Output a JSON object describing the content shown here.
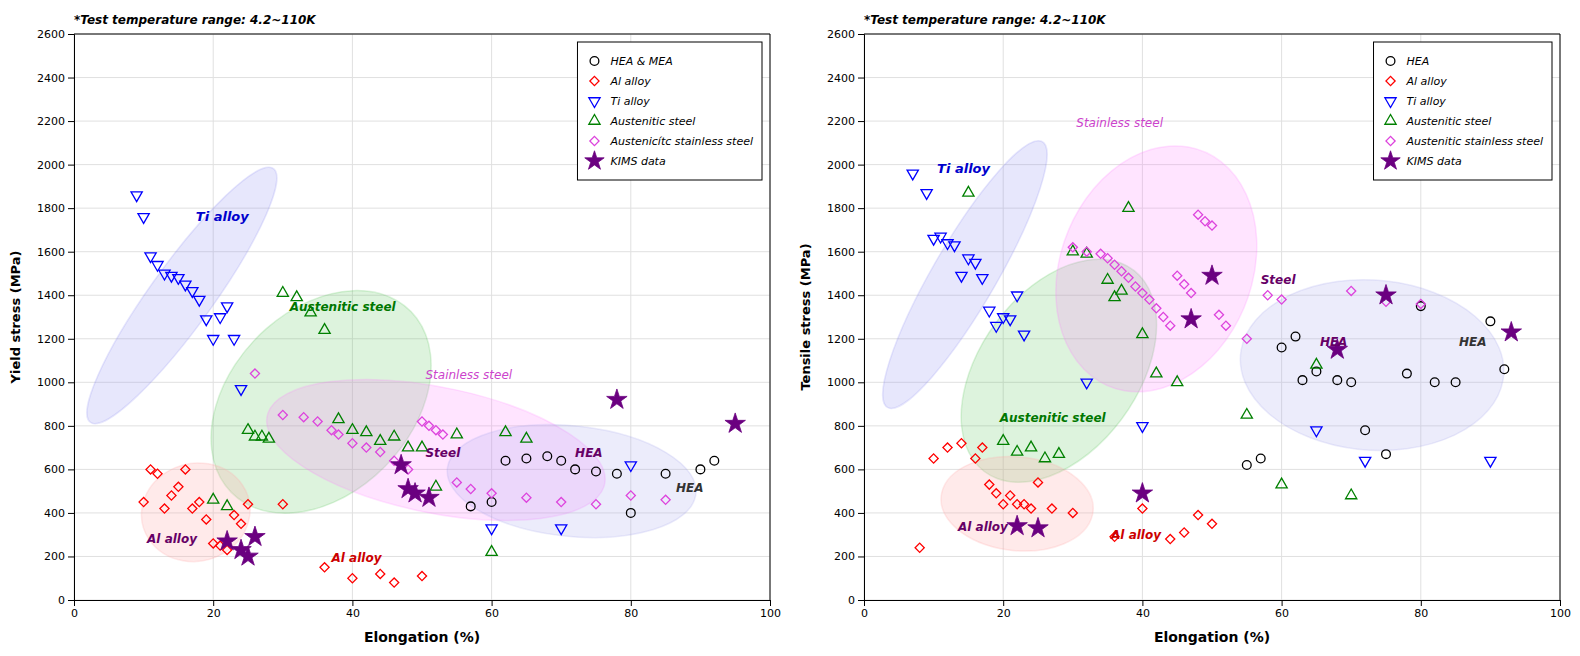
{
  "chart_data": [
    {
      "type": "scatter",
      "title": "*Test temperature range: 4.2~110K",
      "x_label": "Elongation (%)",
      "y_label": "Yield stress (MPa)",
      "xlim": [
        0,
        100
      ],
      "ylim": [
        0,
        2600
      ],
      "xticks": [
        0,
        20,
        40,
        60,
        80,
        100
      ],
      "yticks": [
        0,
        200,
        400,
        600,
        800,
        1000,
        1200,
        1400,
        1600,
        1800,
        2000,
        2200,
        2400,
        2600
      ],
      "grid": true,
      "legend": "upper right",
      "series": [
        {
          "name": "HEA & MEA",
          "color": "black",
          "marker": "circle",
          "x": [
            57,
            60,
            62,
            65,
            68,
            70,
            72,
            75,
            78,
            80,
            85,
            90,
            92
          ],
          "values": [
            430,
            450,
            640,
            650,
            660,
            640,
            600,
            590,
            580,
            400,
            580,
            600,
            640
          ]
        },
        {
          "name": "Al alloy",
          "color": "red",
          "marker": "diamond",
          "x": [
            10,
            11,
            12,
            13,
            14,
            15,
            16,
            17,
            18,
            19,
            20,
            21,
            22,
            23,
            24,
            25,
            30,
            36,
            40,
            44,
            46,
            50
          ],
          "values": [
            450,
            600,
            580,
            420,
            480,
            520,
            600,
            420,
            450,
            370,
            260,
            250,
            230,
            390,
            350,
            440,
            440,
            150,
            100,
            120,
            80,
            110
          ]
        },
        {
          "name": "Ti alloy",
          "color": "blue",
          "marker": "triangle-down",
          "x": [
            9,
            10,
            11,
            12,
            13,
            14,
            15,
            16,
            17,
            18,
            19,
            20,
            21,
            22,
            23,
            24,
            60,
            70,
            80
          ],
          "values": [
            1860,
            1760,
            1580,
            1540,
            1500,
            1490,
            1480,
            1450,
            1420,
            1380,
            1290,
            1200,
            1300,
            1350,
            1200,
            970,
            330,
            330,
            620
          ]
        },
        {
          "name": "Austenitic steel",
          "color": "green",
          "marker": "triangle-up",
          "x": [
            20,
            22,
            25,
            26,
            27,
            28,
            30,
            32,
            34,
            36,
            38,
            40,
            42,
            44,
            46,
            48,
            50,
            52,
            55,
            60,
            62,
            65
          ],
          "values": [
            460,
            430,
            780,
            750,
            750,
            740,
            1410,
            1390,
            1320,
            1240,
            830,
            780,
            770,
            730,
            750,
            700,
            700,
            520,
            760,
            220,
            770,
            740
          ]
        },
        {
          "name": "Austenicítc stainless steel",
          "color": "#DD44DD",
          "marker": "diamond",
          "x": [
            26,
            30,
            33,
            35,
            37,
            38,
            40,
            42,
            44,
            46,
            47,
            48,
            50,
            51,
            52,
            53,
            55,
            57,
            60,
            65,
            70,
            75,
            80,
            85
          ],
          "values": [
            1040,
            850,
            840,
            820,
            780,
            760,
            720,
            700,
            680,
            640,
            620,
            600,
            820,
            800,
            780,
            760,
            540,
            510,
            490,
            470,
            450,
            440,
            480,
            460
          ]
        },
        {
          "name": "KIMS data",
          "color": "#6B0080",
          "marker": "star",
          "x": [
            22,
            24,
            25,
            26,
            47,
            48,
            49,
            51,
            78,
            95
          ],
          "values": [
            270,
            230,
            200,
            290,
            620,
            510,
            490,
            470,
            920,
            810
          ]
        }
      ],
      "annotations": [
        {
          "text": "Ti alloy",
          "color": "#0000CC"
        },
        {
          "text": "Austenitic steel",
          "color": "#007700"
        },
        {
          "text": "Stainless steel",
          "color": "#CC44CC"
        },
        {
          "text": "Al alloy",
          "color": "#CC0000"
        },
        {
          "text": "Al alloy",
          "color": "#660066"
        },
        {
          "text": "Steel",
          "color": "#660066"
        },
        {
          "text": "HEA",
          "color": "#660066"
        },
        {
          "text": "HEA",
          "color": "#333333"
        }
      ]
    },
    {
      "type": "scatter",
      "title": "*Test temperature range: 4.2~110K",
      "x_label": "Elongation (%)",
      "y_label": "Tensile stress (MPa)",
      "xlim": [
        0,
        100
      ],
      "ylim": [
        0,
        2600
      ],
      "xticks": [
        0,
        20,
        40,
        60,
        80,
        100
      ],
      "yticks": [
        0,
        200,
        400,
        600,
        800,
        1000,
        1200,
        1400,
        1600,
        1800,
        2000,
        2200,
        2400,
        2600
      ],
      "grid": true,
      "legend": "upper right",
      "series": [
        {
          "name": "HEA",
          "color": "black",
          "marker": "circle",
          "x": [
            55,
            57,
            60,
            62,
            63,
            65,
            68,
            70,
            72,
            75,
            78,
            80,
            82,
            85,
            90,
            92
          ],
          "values": [
            620,
            650,
            1160,
            1210,
            1010,
            1050,
            1010,
            1000,
            780,
            670,
            1040,
            1350,
            1000,
            1000,
            1280,
            1060
          ]
        },
        {
          "name": "Al alloy",
          "color": "red",
          "marker": "diamond",
          "x": [
            8,
            10,
            12,
            14,
            16,
            17,
            18,
            19,
            20,
            21,
            22,
            23,
            24,
            25,
            27,
            30,
            36,
            40,
            44,
            46,
            48,
            50
          ],
          "values": [
            240,
            650,
            700,
            720,
            650,
            700,
            530,
            490,
            440,
            480,
            440,
            440,
            420,
            540,
            420,
            400,
            290,
            420,
            280,
            310,
            390,
            350
          ]
        },
        {
          "name": "Ti alloy",
          "color": "blue",
          "marker": "triangle-down",
          "x": [
            7,
            9,
            10,
            11,
            12,
            13,
            14,
            15,
            16,
            17,
            18,
            19,
            20,
            21,
            22,
            23,
            32,
            40,
            65,
            72,
            90
          ],
          "values": [
            1960,
            1870,
            1660,
            1670,
            1640,
            1630,
            1490,
            1570,
            1550,
            1480,
            1330,
            1260,
            1300,
            1290,
            1400,
            1220,
            1000,
            800,
            780,
            640,
            640
          ]
        },
        {
          "name": "Austenitic steel",
          "color": "green",
          "marker": "triangle-up",
          "x": [
            15,
            20,
            22,
            24,
            26,
            28,
            30,
            32,
            35,
            36,
            37,
            38,
            40,
            42,
            45,
            55,
            60,
            65,
            70
          ],
          "values": [
            1870,
            730,
            680,
            700,
            650,
            670,
            1600,
            1590,
            1470,
            1390,
            1420,
            1800,
            1220,
            1040,
            1000,
            850,
            530,
            1080,
            480
          ]
        },
        {
          "name": "Austenitic stainless steel",
          "color": "#DD44DD",
          "marker": "diamond",
          "x": [
            30,
            32,
            34,
            35,
            36,
            37,
            38,
            39,
            40,
            41,
            42,
            43,
            44,
            45,
            46,
            47,
            48,
            49,
            50,
            51,
            52,
            55,
            58,
            60,
            70,
            75,
            80
          ],
          "values": [
            1620,
            1600,
            1590,
            1570,
            1540,
            1510,
            1480,
            1440,
            1410,
            1380,
            1340,
            1300,
            1260,
            1490,
            1450,
            1410,
            1770,
            1740,
            1720,
            1310,
            1260,
            1200,
            1400,
            1380,
            1420,
            1370,
            1360
          ]
        },
        {
          "name": "KIMS data",
          "color": "#6B0080",
          "marker": "star",
          "x": [
            22,
            25,
            40,
            47,
            50,
            68,
            75,
            93
          ],
          "values": [
            340,
            330,
            490,
            1290,
            1490,
            1150,
            1400,
            1230
          ]
        }
      ],
      "annotations": [
        {
          "text": "Ti alloy",
          "color": "#0000CC"
        },
        {
          "text": "Austenitic steel",
          "color": "#007700"
        },
        {
          "text": "Stainless steel",
          "color": "#CC44CC"
        },
        {
          "text": "Al alloy",
          "color": "#CC0000"
        },
        {
          "text": "Al alloy",
          "color": "#660066"
        },
        {
          "text": "Steel",
          "color": "#660066"
        },
        {
          "text": "HEA",
          "color": "#660066"
        },
        {
          "text": "HEA",
          "color": "#333333"
        }
      ]
    }
  ]
}
